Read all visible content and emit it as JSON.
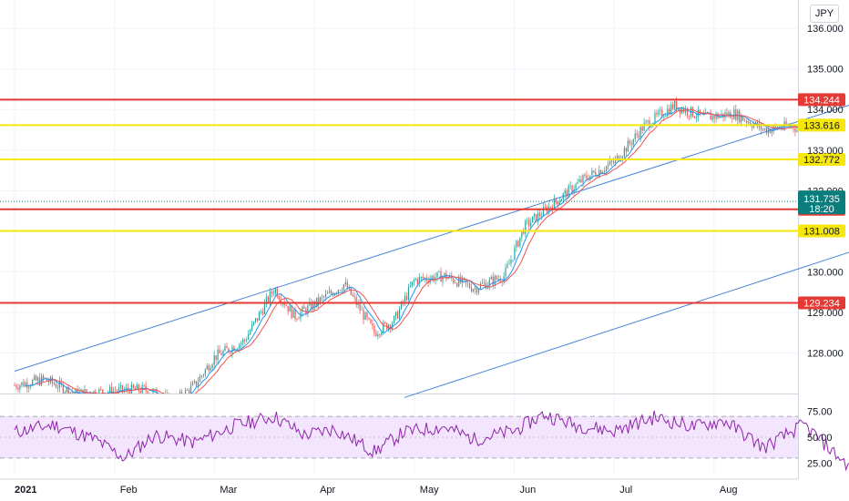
{
  "currency_button": "JPY",
  "colors": {
    "red_level": "#e53935",
    "yellow_level": "#f5e60b",
    "channel": "#4a86d8",
    "candle_up": "#26a69a",
    "candle_down": "#ef5350",
    "ma": "#2196f3",
    "rsi_line": "#8e24aa",
    "rsi_band": "#f3e5fd",
    "current_price": "#0b7d7d"
  },
  "chart_data": {
    "type": "candlestick",
    "instrument_currency": "JPY",
    "x_labels": [
      "2021",
      "Feb",
      "Mar",
      "Apr",
      "May",
      "Jun",
      "Jul",
      "Aug"
    ],
    "price_axis": {
      "ticks": [
        "136.000",
        "135.000",
        "134.000",
        "133.000",
        "132.000",
        "130.000",
        "129.000",
        "128.000"
      ],
      "range": [
        127.0,
        136.7
      ]
    },
    "horizontal_levels": [
      {
        "value": 134.244,
        "label": "134.244",
        "color": "red"
      },
      {
        "value": 133.616,
        "label": "133.616",
        "color": "yellow"
      },
      {
        "value": 132.772,
        "label": "132.772",
        "color": "yellow"
      },
      {
        "value": 131.541,
        "label": "131.541",
        "color": "red"
      },
      {
        "value": 131.008,
        "label": "131.008",
        "color": "yellow"
      },
      {
        "value": 129.234,
        "label": "129.234",
        "color": "red"
      }
    ],
    "current_price": {
      "value": 131.735,
      "label": "131.735",
      "countdown": "18:20"
    },
    "price_path": [
      {
        "t": 0.0,
        "p": 127.2
      },
      {
        "t": 0.3,
        "p": 127.35
      },
      {
        "t": 0.6,
        "p": 127.0
      },
      {
        "t": 1.3,
        "p": 127.1
      },
      {
        "t": 1.6,
        "p": 126.8
      },
      {
        "t": 1.8,
        "p": 127.2
      },
      {
        "t": 2.0,
        "p": 127.9
      },
      {
        "t": 2.3,
        "p": 128.3
      },
      {
        "t": 2.6,
        "p": 129.6
      },
      {
        "t": 2.8,
        "p": 128.9
      },
      {
        "t": 3.0,
        "p": 129.2
      },
      {
        "t": 3.3,
        "p": 129.7
      },
      {
        "t": 3.6,
        "p": 128.5
      },
      {
        "t": 3.8,
        "p": 128.8
      },
      {
        "t": 4.0,
        "p": 129.8
      },
      {
        "t": 4.3,
        "p": 129.9
      },
      {
        "t": 4.6,
        "p": 129.6
      },
      {
        "t": 4.9,
        "p": 129.9
      },
      {
        "t": 5.1,
        "p": 131.1
      },
      {
        "t": 5.4,
        "p": 131.7
      },
      {
        "t": 5.7,
        "p": 132.3
      },
      {
        "t": 6.0,
        "p": 132.7
      },
      {
        "t": 6.3,
        "p": 133.6
      },
      {
        "t": 6.6,
        "p": 134.1
      },
      {
        "t": 6.9,
        "p": 133.8
      },
      {
        "t": 7.2,
        "p": 133.9
      },
      {
        "t": 7.5,
        "p": 133.5
      },
      {
        "t": 7.8,
        "p": 133.6
      },
      {
        "t": 8.0,
        "p": 132.9
      },
      {
        "t": 8.2,
        "p": 130.9
      },
      {
        "t": 8.4,
        "p": 130.4
      },
      {
        "t": 8.6,
        "p": 132.6
      },
      {
        "t": 8.8,
        "p": 132.4
      },
      {
        "t": 9.0,
        "p": 131.7
      }
    ],
    "trend_channel": {
      "upper": {
        "start": {
          "t": 0.0,
          "p": 127.55
        },
        "end": {
          "t": 11.4,
          "p": 136.5
        }
      },
      "lower": {
        "start": {
          "t": 3.9,
          "p": 126.9
        },
        "end": {
          "t": 10.3,
          "p": 132.05
        }
      }
    },
    "markers": {
      "events_count": "6",
      "dividends_count": "2"
    },
    "rsi": {
      "ticks": [
        "75.00",
        "50.00",
        "25.00"
      ],
      "overbought": 70,
      "oversold": 30,
      "range": [
        15,
        85
      ],
      "path": [
        {
          "t": 0.0,
          "v": 55
        },
        {
          "t": 0.4,
          "v": 62
        },
        {
          "t": 0.8,
          "v": 48
        },
        {
          "t": 1.1,
          "v": 30
        },
        {
          "t": 1.4,
          "v": 52
        },
        {
          "t": 1.8,
          "v": 45
        },
        {
          "t": 2.2,
          "v": 61
        },
        {
          "t": 2.6,
          "v": 70
        },
        {
          "t": 2.9,
          "v": 52
        },
        {
          "t": 3.2,
          "v": 58
        },
        {
          "t": 3.6,
          "v": 36
        },
        {
          "t": 3.9,
          "v": 55
        },
        {
          "t": 4.3,
          "v": 60
        },
        {
          "t": 4.6,
          "v": 48
        },
        {
          "t": 5.0,
          "v": 56
        },
        {
          "t": 5.3,
          "v": 72
        },
        {
          "t": 5.6,
          "v": 62
        },
        {
          "t": 6.0,
          "v": 56
        },
        {
          "t": 6.4,
          "v": 69
        },
        {
          "t": 6.8,
          "v": 60
        },
        {
          "t": 7.1,
          "v": 66
        },
        {
          "t": 7.5,
          "v": 40
        },
        {
          "t": 7.9,
          "v": 62
        },
        {
          "t": 8.2,
          "v": 35
        },
        {
          "t": 8.4,
          "v": 18
        },
        {
          "t": 8.6,
          "v": 63
        },
        {
          "t": 8.8,
          "v": 56
        },
        {
          "t": 9.0,
          "v": 40
        }
      ]
    }
  }
}
